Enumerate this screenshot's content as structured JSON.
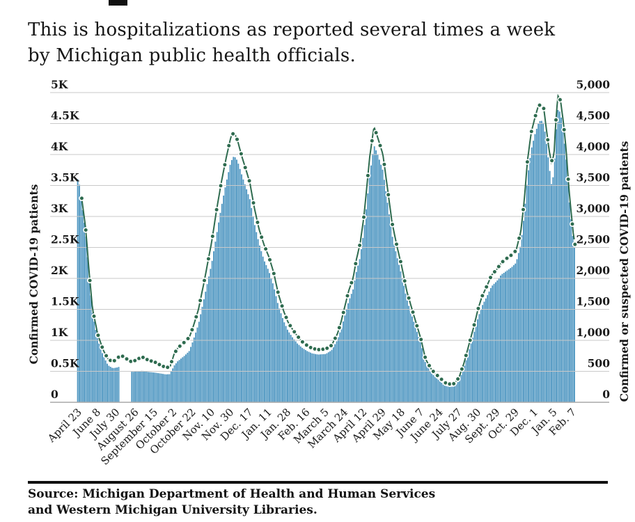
{
  "page": {
    "headline_fragment": "",
    "subtitle_line1": "This is hospitalizations as reported several times a week",
    "subtitle_line2": "by Michigan public health officials.",
    "source_line1": "Source: Michigan Department of Health and Human Services",
    "source_line2": "and Western Michigan University Libraries."
  },
  "chart_data": {
    "type": "bar",
    "title": "",
    "left_axis": {
      "title": "Confirmed COVID-19 patients",
      "ticks": [
        "0",
        "0.5K",
        "1K",
        "1.5K",
        "2K",
        "2.5K",
        "3K",
        "3.5K",
        "4K",
        "4.5K",
        "5K"
      ]
    },
    "right_axis": {
      "title": "Confirmed or suspected COVID-19 patients",
      "ticks": [
        "0",
        "500",
        "1,000",
        "1,500",
        "2,000",
        "2,500",
        "3,000",
        "3,500",
        "4,000",
        "4,500",
        "5,000"
      ]
    },
    "ylim": [
      0,
      5000
    ],
    "grid": true,
    "x_tick_labels": [
      "April 23",
      "June 8",
      "July 30",
      "August 26",
      "September 15",
      "October 2",
      "October 22",
      "Nov. 10",
      "Nov. 30",
      "Dec. 17",
      "Jan. 11",
      "Jan. 28",
      "Feb. 16",
      "March 5",
      "March 24",
      "April 12",
      "April 29",
      "May 18",
      "June 7",
      "June 24",
      "July 27",
      "Aug. 30",
      "Sept. 29",
      "Oct. 29",
      "Dec. 1",
      "Jan. 5",
      "Feb. 7"
    ],
    "series": [
      {
        "name": "Confirmed COVID-19 patients (bars)",
        "color": "#4E96C1"
      },
      {
        "name": "Confirmed or suspected COVID-19 patients (dots)",
        "color": "#2E6B4F"
      }
    ],
    "colors": {
      "bar": "#4E96C1",
      "dot": "#2E6B4F",
      "dot_ring": "#ffffff",
      "grid": "#c9c9c9",
      "baseline": "#a9a9a9",
      "text": "#1a1a1a"
    },
    "bar_gaps_u": [
      [
        2.14,
        2.78
      ]
    ],
    "points_u_suspected_confirmed": [
      [
        0.0,
        3670,
        3600
      ],
      [
        0.37,
        2800,
        2720
      ],
      [
        0.55,
        2100,
        2020
      ],
      [
        0.73,
        1500,
        1430
      ],
      [
        1.0,
        1100,
        1010
      ],
      [
        1.28,
        850,
        760
      ],
      [
        1.54,
        700,
        600
      ],
      [
        1.79,
        650,
        550
      ],
      [
        2.0,
        700,
        560
      ],
      [
        2.2,
        760,
        580
      ],
      [
        2.45,
        720,
        560
      ],
      [
        2.6,
        680,
        520
      ],
      [
        2.82,
        650,
        490
      ],
      [
        3.11,
        700,
        500
      ],
      [
        3.35,
        730,
        510
      ],
      [
        3.66,
        680,
        490
      ],
      [
        4.0,
        650,
        480
      ],
      [
        4.3,
        600,
        465
      ],
      [
        4.6,
        560,
        450
      ],
      [
        4.8,
        570,
        455
      ],
      [
        5.02,
        780,
        590
      ],
      [
        5.2,
        870,
        660
      ],
      [
        5.4,
        930,
        710
      ],
      [
        5.6,
        980,
        760
      ],
      [
        5.82,
        1050,
        830
      ],
      [
        6.0,
        1200,
        980
      ],
      [
        6.3,
        1500,
        1260
      ],
      [
        6.6,
        1950,
        1680
      ],
      [
        7.0,
        2600,
        2250
      ],
      [
        7.25,
        3100,
        2700
      ],
      [
        7.5,
        3550,
        3150
      ],
      [
        7.76,
        3950,
        3550
      ],
      [
        8.0,
        4280,
        3880
      ],
      [
        8.17,
        4360,
        3980
      ],
      [
        8.35,
        4230,
        3900
      ],
      [
        8.6,
        3950,
        3650
      ],
      [
        9.0,
        3550,
        3280
      ],
      [
        9.23,
        3150,
        2900
      ],
      [
        9.48,
        2800,
        2570
      ],
      [
        9.74,
        2550,
        2300
      ],
      [
        10.0,
        2350,
        2120
      ],
      [
        10.25,
        2100,
        1880
      ],
      [
        10.5,
        1750,
        1560
      ],
      [
        10.77,
        1480,
        1320
      ],
      [
        11.0,
        1300,
        1160
      ],
      [
        11.24,
        1180,
        1050
      ],
      [
        11.5,
        1070,
        950
      ],
      [
        11.75,
        980,
        880
      ],
      [
        12.0,
        920,
        830
      ],
      [
        12.27,
        870,
        790
      ],
      [
        12.6,
        850,
        770
      ],
      [
        13.0,
        860,
        780
      ],
      [
        13.3,
        920,
        840
      ],
      [
        13.6,
        1100,
        1000
      ],
      [
        13.8,
        1300,
        1180
      ],
      [
        14.0,
        1550,
        1400
      ],
      [
        14.2,
        1800,
        1630
      ],
      [
        14.43,
        2000,
        1820
      ],
      [
        14.6,
        2300,
        2100
      ],
      [
        14.8,
        2560,
        2340
      ],
      [
        15.0,
        3000,
        2760
      ],
      [
        15.16,
        3500,
        3230
      ],
      [
        15.3,
        3950,
        3650
      ],
      [
        15.53,
        4450,
        4150
      ],
      [
        15.7,
        4300,
        4020
      ],
      [
        16.0,
        4000,
        3740
      ],
      [
        16.22,
        3500,
        3270
      ],
      [
        16.48,
        2900,
        2700
      ],
      [
        16.73,
        2530,
        2360
      ],
      [
        17.0,
        2180,
        2030
      ],
      [
        17.25,
        1800,
        1670
      ],
      [
        17.58,
        1450,
        1340
      ],
      [
        18.0,
        1020,
        940
      ],
      [
        18.24,
        700,
        630
      ],
      [
        18.53,
        540,
        480
      ],
      [
        18.79,
        450,
        395
      ],
      [
        19.0,
        400,
        345
      ],
      [
        19.22,
        320,
        270
      ],
      [
        19.5,
        295,
        248
      ],
      [
        19.74,
        300,
        253
      ],
      [
        20.0,
        400,
        345
      ],
      [
        20.25,
        620,
        545
      ],
      [
        20.54,
        950,
        845
      ],
      [
        20.76,
        1200,
        1080
      ],
      [
        21.0,
        1500,
        1360
      ],
      [
        21.2,
        1700,
        1545
      ],
      [
        21.5,
        1900,
        1730
      ],
      [
        21.71,
        2050,
        1870
      ],
      [
        22.0,
        2150,
        1960
      ],
      [
        22.22,
        2250,
        2060
      ],
      [
        22.5,
        2320,
        2120
      ],
      [
        22.77,
        2380,
        2180
      ],
      [
        23.0,
        2450,
        2250
      ],
      [
        23.25,
        2750,
        2540
      ],
      [
        23.43,
        3250,
        3020
      ],
      [
        23.6,
        3900,
        3620
      ],
      [
        23.8,
        4360,
        4080
      ],
      [
        24.0,
        4600,
        4330
      ],
      [
        24.17,
        4780,
        4500
      ],
      [
        24.3,
        4810,
        4560
      ],
      [
        24.46,
        4740,
        4500
      ],
      [
        24.6,
        4400,
        4180
      ],
      [
        24.75,
        4050,
        3800
      ],
      [
        24.86,
        3880,
        3520
      ],
      [
        25.0,
        4000,
        3700
      ],
      [
        25.08,
        4480,
        4250
      ],
      [
        25.2,
        4950,
        4720
      ],
      [
        25.34,
        4870,
        4680
      ],
      [
        25.48,
        4550,
        4380
      ],
      [
        25.63,
        4100,
        3950
      ],
      [
        25.78,
        3450,
        3320
      ],
      [
        26.0,
        2750,
        2630
      ],
      [
        26.1,
        2550,
        2440
      ]
    ]
  }
}
